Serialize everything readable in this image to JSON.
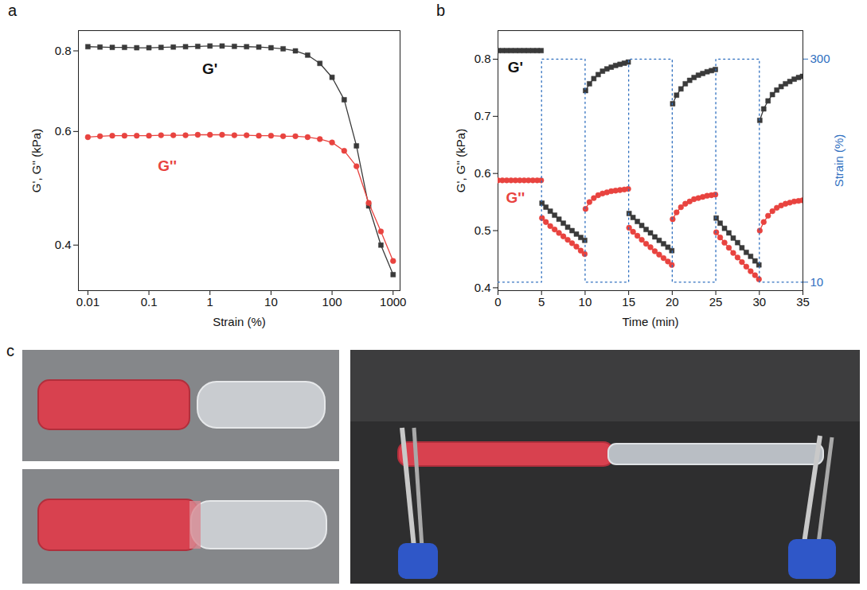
{
  "chart_data": [
    {
      "panel": "a",
      "type": "line",
      "log": true,
      "grid": false,
      "x_label": "Strain (%)",
      "y_label": "G', G'' (kPa)",
      "xlim": [
        0.007,
        1300
      ],
      "xticks": [
        0.01,
        0.1,
        1,
        10,
        100,
        1000
      ],
      "ylim": [
        0.34,
        0.86
      ],
      "yticks": [
        0.4,
        0.6,
        0.8
      ],
      "x": [
        0.01,
        0.0158,
        0.0251,
        0.0398,
        0.0631,
        0.1,
        0.158,
        0.251,
        0.398,
        0.631,
        1,
        1.58,
        2.51,
        3.98,
        6.31,
        10,
        15.8,
        25.1,
        39.8,
        63.1,
        100,
        158,
        251,
        398,
        631,
        1000
      ],
      "series": [
        {
          "name": "G'",
          "color": "#3a3a3a",
          "marker": "square",
          "line_style": "solid",
          "values": [
            0.812,
            0.811,
            0.81,
            0.81,
            0.809,
            0.809,
            0.81,
            0.811,
            0.812,
            0.813,
            0.814,
            0.814,
            0.813,
            0.812,
            0.811,
            0.809,
            0.806,
            0.8,
            0.788,
            0.765,
            0.728,
            0.672,
            0.57,
            0.46,
            0.4,
            0.36
          ]
        },
        {
          "name": "G''",
          "color": "#e8433f",
          "marker": "circle",
          "line_style": "solid",
          "values": [
            0.588,
            0.59,
            0.591,
            0.591,
            0.591,
            0.591,
            0.592,
            0.592,
            0.592,
            0.593,
            0.593,
            0.593,
            0.592,
            0.592,
            0.591,
            0.591,
            0.59,
            0.59,
            0.588,
            0.584,
            0.577,
            0.56,
            0.53,
            0.465,
            0.42,
            0.378
          ]
        }
      ],
      "annotations": [
        {
          "text": "G'",
          "x": 1,
          "y": 0.75,
          "color": "#111111"
        },
        {
          "text": "G''",
          "x": 0.2,
          "y": 0.53,
          "color": "#e8433f"
        }
      ]
    },
    {
      "panel": "b",
      "type": "line",
      "grid": false,
      "x_label": "Time (min)",
      "y_label": "G', G'' (kPa)",
      "y2_label": "Strain (%)",
      "xlim": [
        0,
        35
      ],
      "xticks": [
        0,
        5,
        10,
        15,
        20,
        25,
        30,
        35
      ],
      "ylim": [
        0.395,
        0.85
      ],
      "yticks": [
        0.4,
        0.5,
        0.6,
        0.7,
        0.8
      ],
      "y2lim": [
        -1,
        337
      ],
      "y2ticks": [
        10,
        300
      ],
      "x": [
        0,
        0.5,
        1,
        1.5,
        2,
        2.5,
        3,
        3.5,
        4,
        4.5,
        4.95,
        5,
        5.05,
        5.5,
        6,
        6.5,
        7,
        7.5,
        8,
        8.5,
        9,
        9.5,
        9.95,
        10,
        10.05,
        10.5,
        11,
        11.5,
        12,
        12.5,
        13,
        13.5,
        14,
        14.5,
        14.95,
        15,
        15.05,
        15.5,
        16,
        16.5,
        17,
        17.5,
        18,
        18.5,
        19,
        19.5,
        19.95,
        20,
        20.05,
        20.5,
        21,
        21.5,
        22,
        22.5,
        23,
        23.5,
        24,
        24.5,
        24.95,
        25,
        25.05,
        25.5,
        26,
        26.5,
        27,
        27.5,
        28,
        28.5,
        29,
        29.5,
        29.95,
        30,
        30.05,
        30.5,
        31,
        31.5,
        32,
        32.5,
        33,
        33.5,
        34,
        34.5,
        34.95
      ],
      "series": [
        {
          "name": "G'",
          "color": "#3a3a3a",
          "marker": "square",
          "line_style": "solid",
          "values": [
            0.815,
            0.815,
            0.815,
            0.815,
            0.815,
            0.815,
            0.815,
            0.815,
            0.815,
            0.815,
            0.815,
            null,
            0.548,
            0.541,
            0.534,
            0.527,
            0.52,
            0.513,
            0.506,
            0.5,
            0.494,
            0.488,
            0.483,
            null,
            0.745,
            0.757,
            0.766,
            0.773,
            0.779,
            0.783,
            0.786,
            0.789,
            0.791,
            0.793,
            0.795,
            null,
            0.53,
            0.523,
            0.516,
            0.509,
            0.502,
            0.496,
            0.489,
            0.483,
            0.477,
            0.471,
            0.465,
            null,
            0.722,
            0.737,
            0.748,
            0.757,
            0.763,
            0.768,
            0.772,
            0.775,
            0.778,
            0.78,
            0.782,
            null,
            0.522,
            0.513,
            0.504,
            0.496,
            0.487,
            0.479,
            0.47,
            0.462,
            0.455,
            0.447,
            0.44,
            null,
            0.693,
            0.713,
            0.727,
            0.738,
            0.746,
            0.752,
            0.757,
            0.761,
            0.765,
            0.768,
            0.77
          ]
        },
        {
          "name": "G''",
          "color": "#e8433f",
          "marker": "circle",
          "line_style": "solid",
          "values": [
            0.588,
            0.588,
            0.588,
            0.588,
            0.588,
            0.588,
            0.588,
            0.588,
            0.588,
            0.588,
            0.588,
            null,
            0.522,
            0.515,
            0.508,
            0.502,
            0.496,
            0.49,
            0.484,
            0.478,
            0.472,
            0.465,
            0.459,
            null,
            0.538,
            0.55,
            0.557,
            0.562,
            0.565,
            0.567,
            0.569,
            0.57,
            0.571,
            0.572,
            0.573,
            null,
            0.505,
            0.498,
            0.491,
            0.484,
            0.477,
            0.471,
            0.464,
            0.458,
            0.452,
            0.446,
            0.44,
            null,
            0.52,
            0.532,
            0.541,
            0.547,
            0.551,
            0.555,
            0.557,
            0.559,
            0.561,
            0.562,
            0.563,
            null,
            0.497,
            0.488,
            0.479,
            0.47,
            0.461,
            0.453,
            0.445,
            0.437,
            0.429,
            0.422,
            0.415,
            null,
            0.5,
            0.515,
            0.526,
            0.534,
            0.54,
            0.544,
            0.547,
            0.549,
            0.551,
            0.552,
            0.553
          ]
        },
        {
          "name": "Strain (%)",
          "axis": "y2",
          "color": "#2f6fbf",
          "line_style": "dotted",
          "x": [
            0,
            5,
            5,
            10,
            10,
            15,
            15,
            20,
            20,
            25,
            25,
            30,
            30,
            35
          ],
          "values": [
            10,
            10,
            300,
            300,
            10,
            10,
            300,
            300,
            10,
            10,
            300,
            300,
            10,
            10
          ]
        }
      ],
      "annotations": [
        {
          "text": "G'",
          "x": 2,
          "y": 0.785,
          "color": "#111111"
        },
        {
          "text": "G''",
          "x": 2,
          "y": 0.557,
          "color": "#e8433f"
        }
      ]
    }
  ],
  "photo_panel": {
    "panel": "c"
  }
}
